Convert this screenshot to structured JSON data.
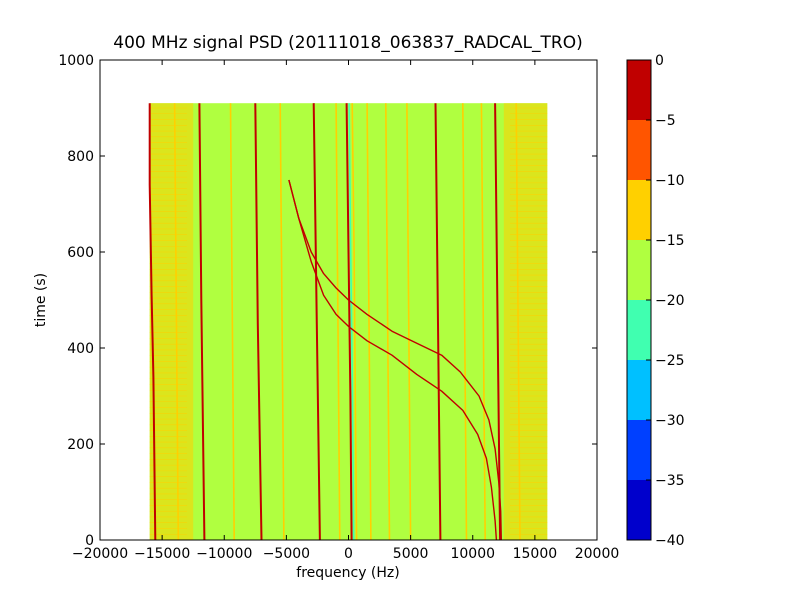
{
  "chart_data": {
    "type": "heatmap",
    "title": "400 MHz signal PSD (20111018_063837_RADCAL_TRO)",
    "xlabel": "frequency (Hz)",
    "ylabel": "time (s)",
    "xlim": [
      -20000,
      20000
    ],
    "ylim": [
      0,
      1000
    ],
    "x_ticks": [
      -20000,
      -15000,
      -10000,
      -5000,
      0,
      5000,
      10000,
      15000,
      20000
    ],
    "y_ticks": [
      0,
      200,
      400,
      600,
      800,
      1000
    ],
    "data_extent": {
      "x": [
        -16000,
        16000
      ],
      "y": [
        0,
        910
      ]
    },
    "background_level_db": -17,
    "edge_band_level_db": -12,
    "colorbar": {
      "levels": [
        -40,
        -35,
        -30,
        -25,
        -20,
        -15,
        -10,
        -5,
        0
      ],
      "colors": [
        "#0000cc",
        "#0040ff",
        "#00c0ff",
        "#40ffb0",
        "#b0ff40",
        "#ffd000",
        "#ff5500",
        "#c00000"
      ],
      "tick_labels": [
        "0",
        "−5",
        "−10",
        "−15",
        "−20",
        "−25",
        "−30",
        "−35",
        "−40"
      ]
    },
    "traces": {
      "description_units": "points are [frequency Hz, time s]; level in dB",
      "near_vertical_lines": [
        {
          "level_db": -3,
          "points": [
            [
              -16000,
              910
            ],
            [
              -16000,
              740
            ],
            [
              -15850,
              510
            ],
            [
              -15700,
              340
            ],
            [
              -15550,
              0
            ]
          ]
        },
        {
          "level_db": -3,
          "points": [
            [
              -12000,
              910
            ],
            [
              -11850,
              500
            ],
            [
              -11600,
              0
            ]
          ]
        },
        {
          "level_db": -3,
          "points": [
            [
              -7500,
              910
            ],
            [
              -7300,
              450
            ],
            [
              -7000,
              0
            ]
          ]
        },
        {
          "level_db": -3,
          "points": [
            [
              -2800,
              910
            ],
            [
              -2550,
              450
            ],
            [
              -2300,
              0
            ]
          ]
        },
        {
          "level_db": -3,
          "points": [
            [
              7000,
              910
            ],
            [
              7200,
              450
            ],
            [
              7400,
              0
            ]
          ]
        },
        {
          "level_db": -3,
          "points": [
            [
              11800,
              910
            ],
            [
              12000,
              450
            ],
            [
              12200,
              0
            ]
          ]
        },
        {
          "level_db": -12,
          "points": [
            [
              -14000,
              910
            ],
            [
              -13700,
              0
            ]
          ]
        },
        {
          "level_db": -12,
          "points": [
            [
              -9500,
              910
            ],
            [
              -9200,
              0
            ]
          ]
        },
        {
          "level_db": -12,
          "points": [
            [
              -5500,
              910
            ],
            [
              -5200,
              0
            ]
          ]
        },
        {
          "level_db": -12,
          "points": [
            [
              -1000,
              910
            ],
            [
              -700,
              0
            ]
          ]
        },
        {
          "level_db": -12,
          "points": [
            [
              1500,
              910
            ],
            [
              1800,
              0
            ]
          ]
        },
        {
          "level_db": -12,
          "points": [
            [
              3000,
              910
            ],
            [
              3300,
              0
            ]
          ]
        },
        {
          "level_db": -12,
          "points": [
            [
              4700,
              910
            ],
            [
              5000,
              0
            ]
          ]
        },
        {
          "level_db": -12,
          "points": [
            [
              9200,
              910
            ],
            [
              9500,
              0
            ]
          ]
        },
        {
          "level_db": -12,
          "points": [
            [
              10700,
              910
            ],
            [
              11000,
              0
            ]
          ]
        },
        {
          "level_db": -12,
          "points": [
            [
              13500,
              910
            ],
            [
              13800,
              0
            ]
          ]
        },
        {
          "level_db": -3,
          "points": [
            [
              -150,
              910
            ],
            [
              0,
              600
            ],
            [
              150,
              300
            ],
            [
              250,
              0
            ]
          ]
        },
        {
          "level_db": -25,
          "points": [
            [
              50,
              910
            ],
            [
              180,
              600
            ],
            [
              320,
              300
            ],
            [
              420,
              0
            ]
          ]
        },
        {
          "level_db": -12,
          "points": [
            [
              300,
              910
            ],
            [
              450,
              600
            ],
            [
              550,
              300
            ],
            [
              650,
              0
            ]
          ]
        }
      ],
      "curved_lines": [
        {
          "level_db": -3,
          "points": [
            [
              -4800,
              750
            ],
            [
              -4000,
              670
            ],
            [
              -3000,
              600
            ],
            [
              -2000,
              555
            ],
            [
              -1000,
              525
            ],
            [
              0,
              500
            ],
            [
              1500,
              470
            ],
            [
              3500,
              435
            ],
            [
              5500,
              410
            ],
            [
              7500,
              385
            ],
            [
              9000,
              350
            ],
            [
              10500,
              300
            ],
            [
              11300,
              250
            ],
            [
              11800,
              190
            ],
            [
              12100,
              120
            ],
            [
              12250,
              60
            ],
            [
              12300,
              0
            ]
          ]
        },
        {
          "level_db": -3,
          "points": [
            [
              -4800,
              750
            ],
            [
              -4000,
              670
            ],
            [
              -3000,
              580
            ],
            [
              -2000,
              510
            ],
            [
              -1000,
              470
            ],
            [
              0,
              445
            ],
            [
              1500,
              415
            ],
            [
              3500,
              385
            ],
            [
              5500,
              345
            ],
            [
              7500,
              310
            ],
            [
              9200,
              270
            ],
            [
              10400,
              220
            ],
            [
              11100,
              170
            ],
            [
              11500,
              110
            ],
            [
              11800,
              40
            ],
            [
              11900,
              0
            ]
          ]
        }
      ]
    }
  }
}
